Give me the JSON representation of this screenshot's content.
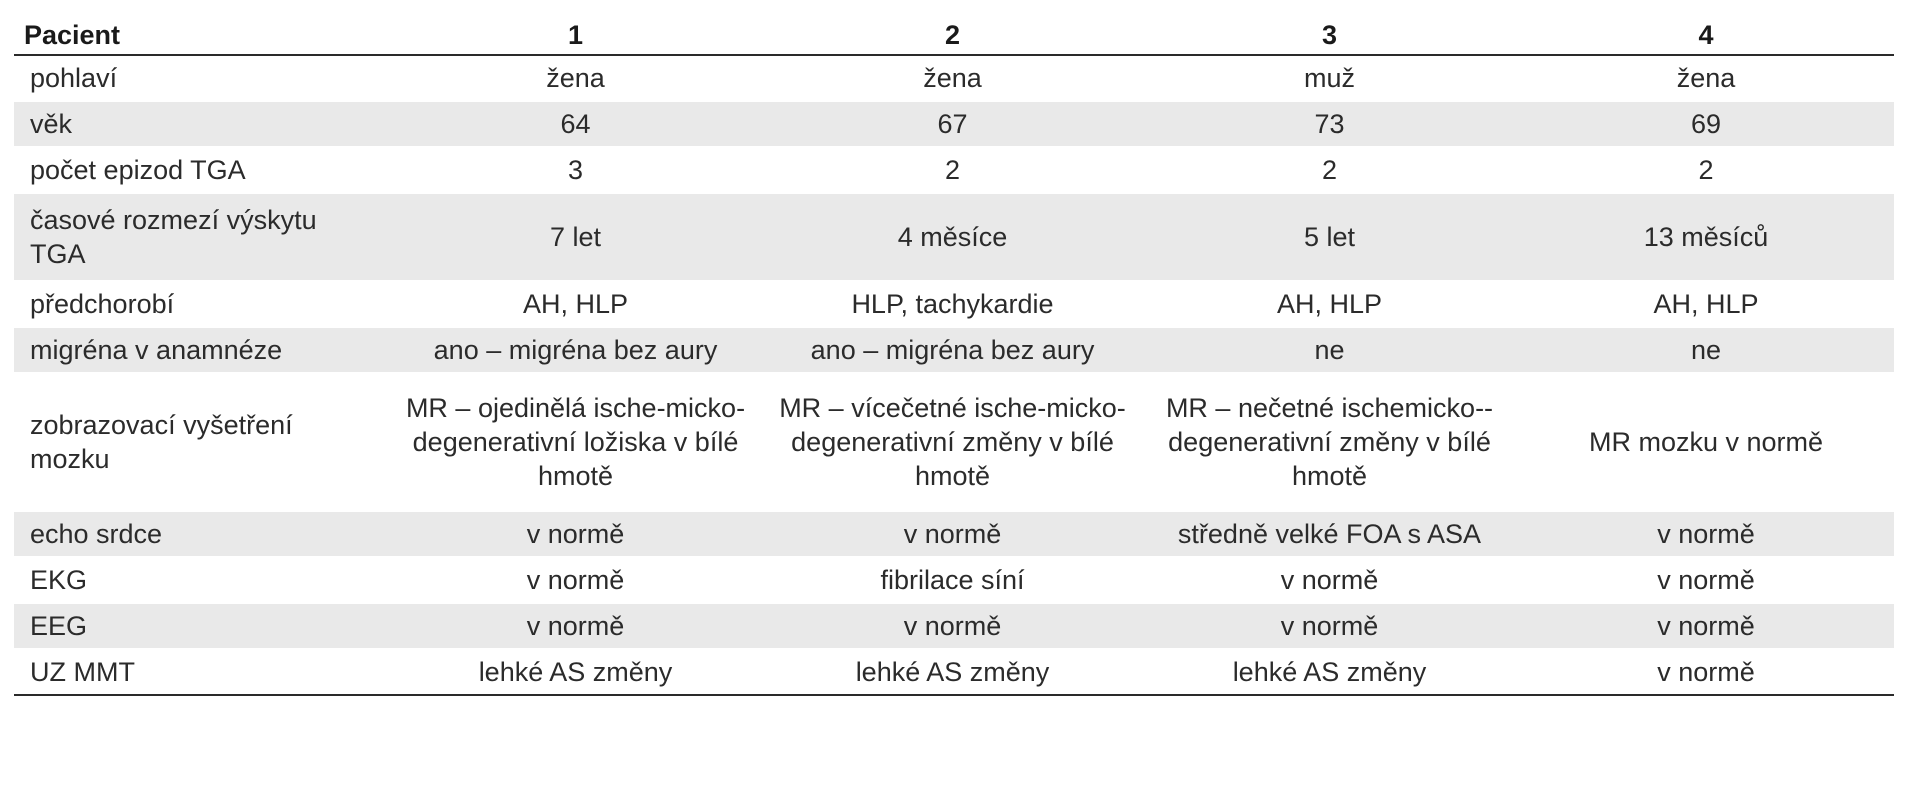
{
  "table": {
    "headers": [
      "Pacient",
      "1",
      "2",
      "3",
      "4"
    ],
    "rows": [
      {
        "label": "pohlaví",
        "cells": [
          "žena",
          "žena",
          "muž",
          "žena"
        ]
      },
      {
        "label": "věk",
        "cells": [
          "64",
          "67",
          "73",
          "69"
        ]
      },
      {
        "label": "počet epizod TGA",
        "cells": [
          "3",
          "2",
          "2",
          "2"
        ]
      },
      {
        "label": "časové rozmezí výskytu TGA",
        "cells": [
          "7 let",
          "4 měsíce",
          "5 let",
          "13 měsíců"
        ]
      },
      {
        "label": "předchorobí",
        "cells": [
          "AH, HLP",
          "HLP, tachykardie",
          "AH, HLP",
          "AH, HLP"
        ]
      },
      {
        "label": "migréna v anamnéze",
        "cells": [
          "ano – migréna bez aury",
          "ano – migréna bez aury",
          "ne",
          "ne"
        ]
      },
      {
        "label": "zobrazovací vyšetření mozku",
        "cells": [
          "MR – ojedinělá ische-micko-degenerativní ložiska v bílé hmotě",
          "MR – vícečetné ische-micko-degenerativní změny v bílé hmotě",
          "MR – nečetné ischemicko--degenerativní změny v bílé hmotě",
          "MR mozku v normě"
        ]
      },
      {
        "label": "echo srdce",
        "cells": [
          "v normě",
          "v normě",
          "středně velké FOA s ASA",
          "v normě"
        ]
      },
      {
        "label": "EKG",
        "cells": [
          "v normě",
          "fibrilace síní",
          "v normě",
          "v normě"
        ]
      },
      {
        "label": "EEG",
        "cells": [
          "v normě",
          "v normě",
          "v normě",
          "v normě"
        ]
      },
      {
        "label": "UZ MMT",
        "cells": [
          "lehké AS změny",
          "lehké AS změny",
          "lehké AS změny",
          "v normě"
        ]
      }
    ]
  }
}
